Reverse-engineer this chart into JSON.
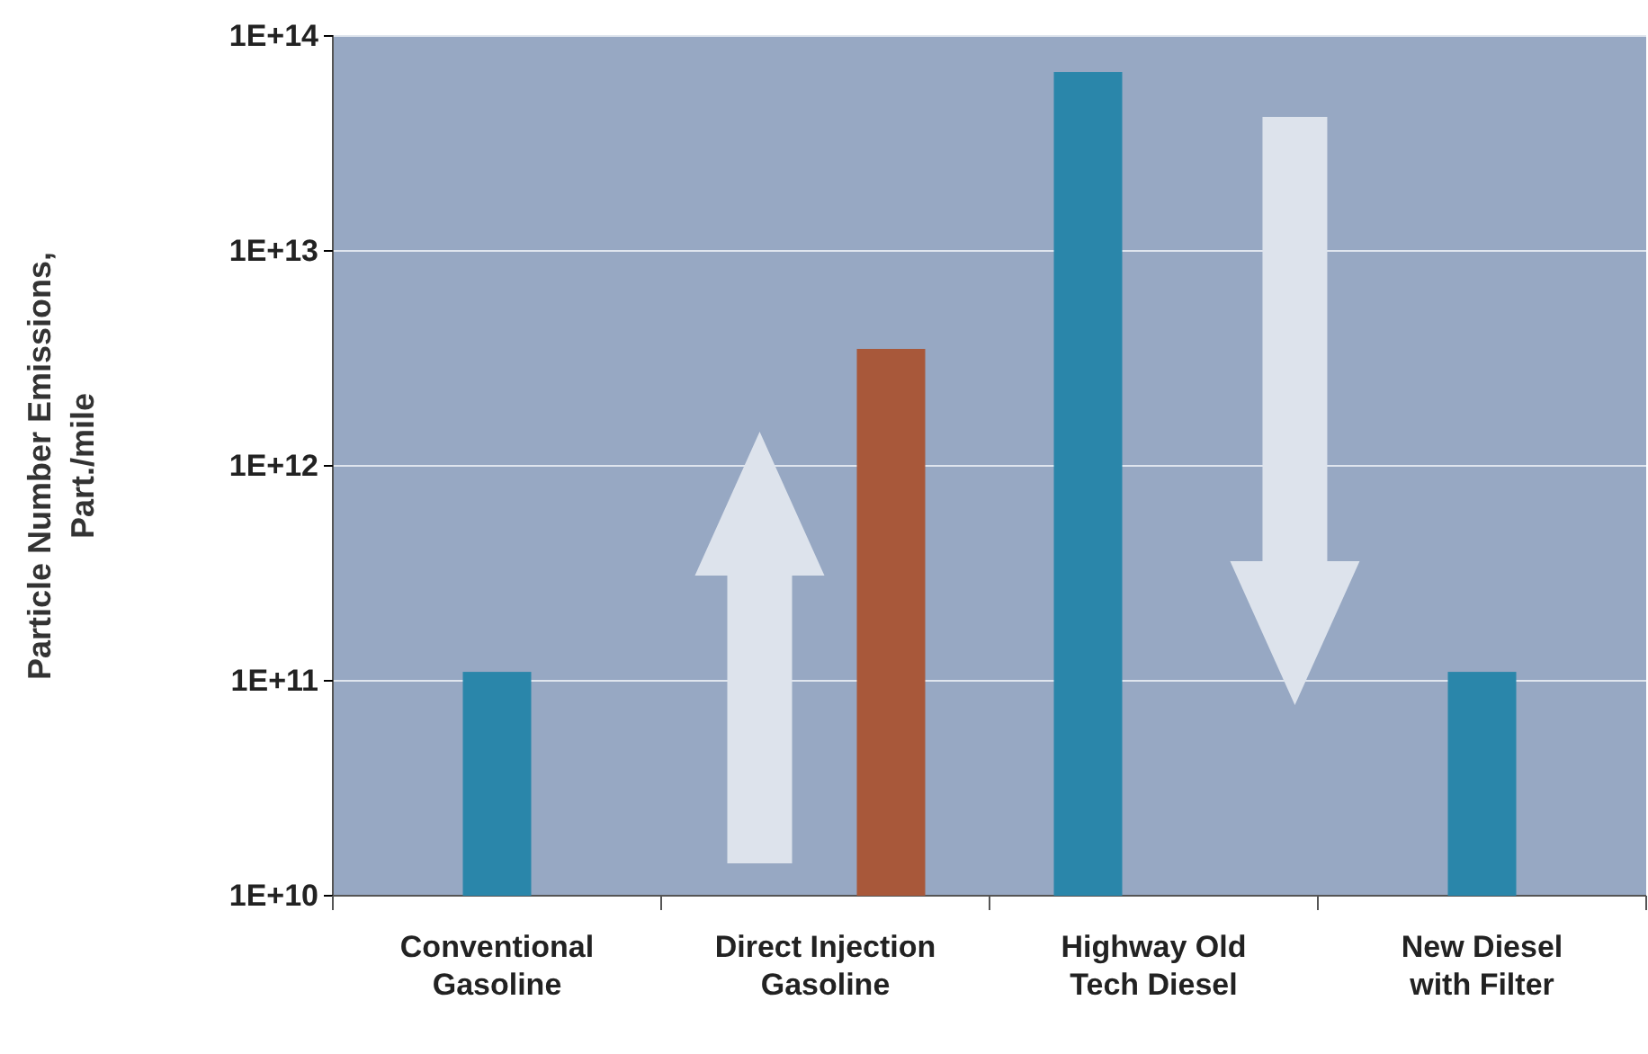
{
  "chart_data": {
    "type": "bar",
    "ylabel": "Particle Number Emissions, Part./mile",
    "categories": [
      "Conventional Gasoline",
      "Direct Injection Gasoline",
      "Highway Old Tech Diesel",
      "New Diesel with Filter"
    ],
    "values": [
      110000000000.0,
      3500000000000.0,
      68000000000000.0,
      110000000000.0
    ],
    "colors": [
      "#2a86aa",
      "#a8583a",
      "#2a86aa",
      "#2a86aa"
    ],
    "log": true,
    "ylim": [
      10000000000.0,
      100000000000000.0
    ],
    "yticks": [
      {
        "value": 10000000000.0,
        "label": "1E+10"
      },
      {
        "value": 100000000000.0,
        "label": "1E+11"
      },
      {
        "value": 1000000000000.0,
        "label": "1E+12"
      },
      {
        "value": 10000000000000.0,
        "label": "1E+13"
      },
      {
        "value": 100000000000000.0,
        "label": "1E+14"
      }
    ],
    "grid": "y"
  }
}
